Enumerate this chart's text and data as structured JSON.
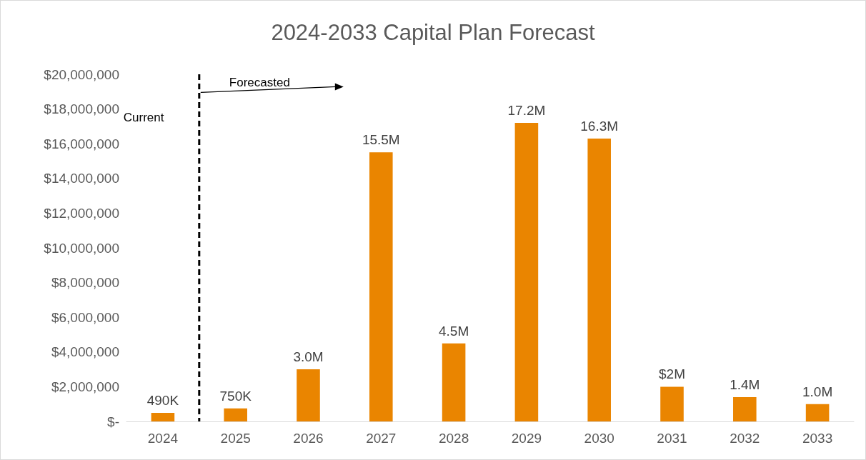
{
  "chart_data": {
    "type": "bar",
    "title": "2024-2033 Capital Plan Forecast",
    "categories": [
      "2024",
      "2025",
      "2026",
      "2027",
      "2028",
      "2029",
      "2030",
      "2031",
      "2032",
      "2033"
    ],
    "values": [
      490000,
      750000,
      3000000,
      15500000,
      4500000,
      17200000,
      16300000,
      2000000,
      1400000,
      1000000
    ],
    "value_labels": [
      "490K",
      "750K",
      "3.0M",
      "15.5M",
      "4.5M",
      "17.2M",
      "16.3M",
      "$2M",
      "1.4M",
      "1.0M"
    ],
    "color": "#ea8500",
    "ylim": [
      0,
      20000000
    ],
    "yticks": [
      {
        "value": 0,
        "label": "$-"
      },
      {
        "value": 2000000,
        "label": "$2,000,000"
      },
      {
        "value": 4000000,
        "label": "$4,000,000"
      },
      {
        "value": 6000000,
        "label": "$6,000,000"
      },
      {
        "value": 8000000,
        "label": "$8,000,000"
      },
      {
        "value": 10000000,
        "label": "$10,000,000"
      },
      {
        "value": 12000000,
        "label": "$12,000,000"
      },
      {
        "value": 14000000,
        "label": "$14,000,000"
      },
      {
        "value": 16000000,
        "label": "$16,000,000"
      },
      {
        "value": 18000000,
        "label": "$18,000,000"
      },
      {
        "value": 20000000,
        "label": "$20,000,000"
      }
    ],
    "grid": false,
    "annotations": [
      "Current",
      "Forecasted"
    ]
  }
}
